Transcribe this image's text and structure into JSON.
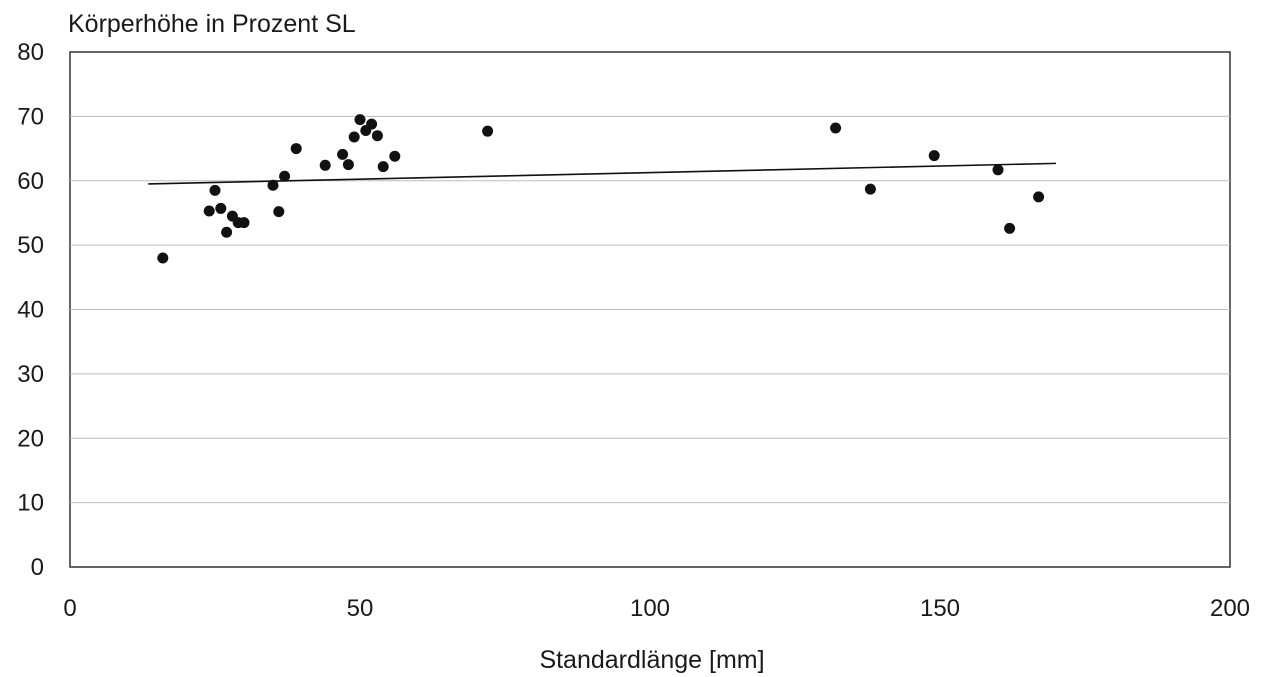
{
  "chart_data": {
    "type": "scatter",
    "title": "",
    "ylabel": "Körperhöhe in Prozent SL",
    "xlabel": "Standardlänge [mm]",
    "xlim": [
      0,
      200
    ],
    "ylim": [
      0,
      80
    ],
    "x_ticks": [
      0,
      50,
      100,
      150,
      200
    ],
    "y_ticks": [
      0,
      10,
      20,
      30,
      40,
      50,
      60,
      70,
      80
    ],
    "grid": "horizontal",
    "legend": "none",
    "series": [
      {
        "points": [
          {
            "x": 16,
            "y": 48
          },
          {
            "x": 24,
            "y": 55.3
          },
          {
            "x": 25,
            "y": 58.5
          },
          {
            "x": 26,
            "y": 55.7
          },
          {
            "x": 27,
            "y": 52
          },
          {
            "x": 28,
            "y": 54.5
          },
          {
            "x": 29,
            "y": 53.5
          },
          {
            "x": 30,
            "y": 53.5
          },
          {
            "x": 35,
            "y": 59.3
          },
          {
            "x": 36,
            "y": 55.2
          },
          {
            "x": 37,
            "y": 60.7
          },
          {
            "x": 39,
            "y": 65
          },
          {
            "x": 44,
            "y": 62.4
          },
          {
            "x": 47,
            "y": 64.1
          },
          {
            "x": 48,
            "y": 62.5
          },
          {
            "x": 49,
            "y": 66.8
          },
          {
            "x": 50,
            "y": 69.5
          },
          {
            "x": 51,
            "y": 67.8
          },
          {
            "x": 52,
            "y": 68.8
          },
          {
            "x": 53,
            "y": 67
          },
          {
            "x": 54,
            "y": 62.2
          },
          {
            "x": 56,
            "y": 63.8
          },
          {
            "x": 72,
            "y": 67.7
          },
          {
            "x": 132,
            "y": 68.2
          },
          {
            "x": 138,
            "y": 58.7
          },
          {
            "x": 149,
            "y": 63.9
          },
          {
            "x": 160,
            "y": 61.7
          },
          {
            "x": 162,
            "y": 52.6
          },
          {
            "x": 167,
            "y": 57.5
          }
        ]
      }
    ],
    "trendline": {
      "x": [
        13.5,
        170
      ],
      "y": [
        59.5,
        62.7
      ]
    },
    "colors": {
      "points": "#111111",
      "trendline": "#111111",
      "grid": "#bdbdbd"
    }
  }
}
